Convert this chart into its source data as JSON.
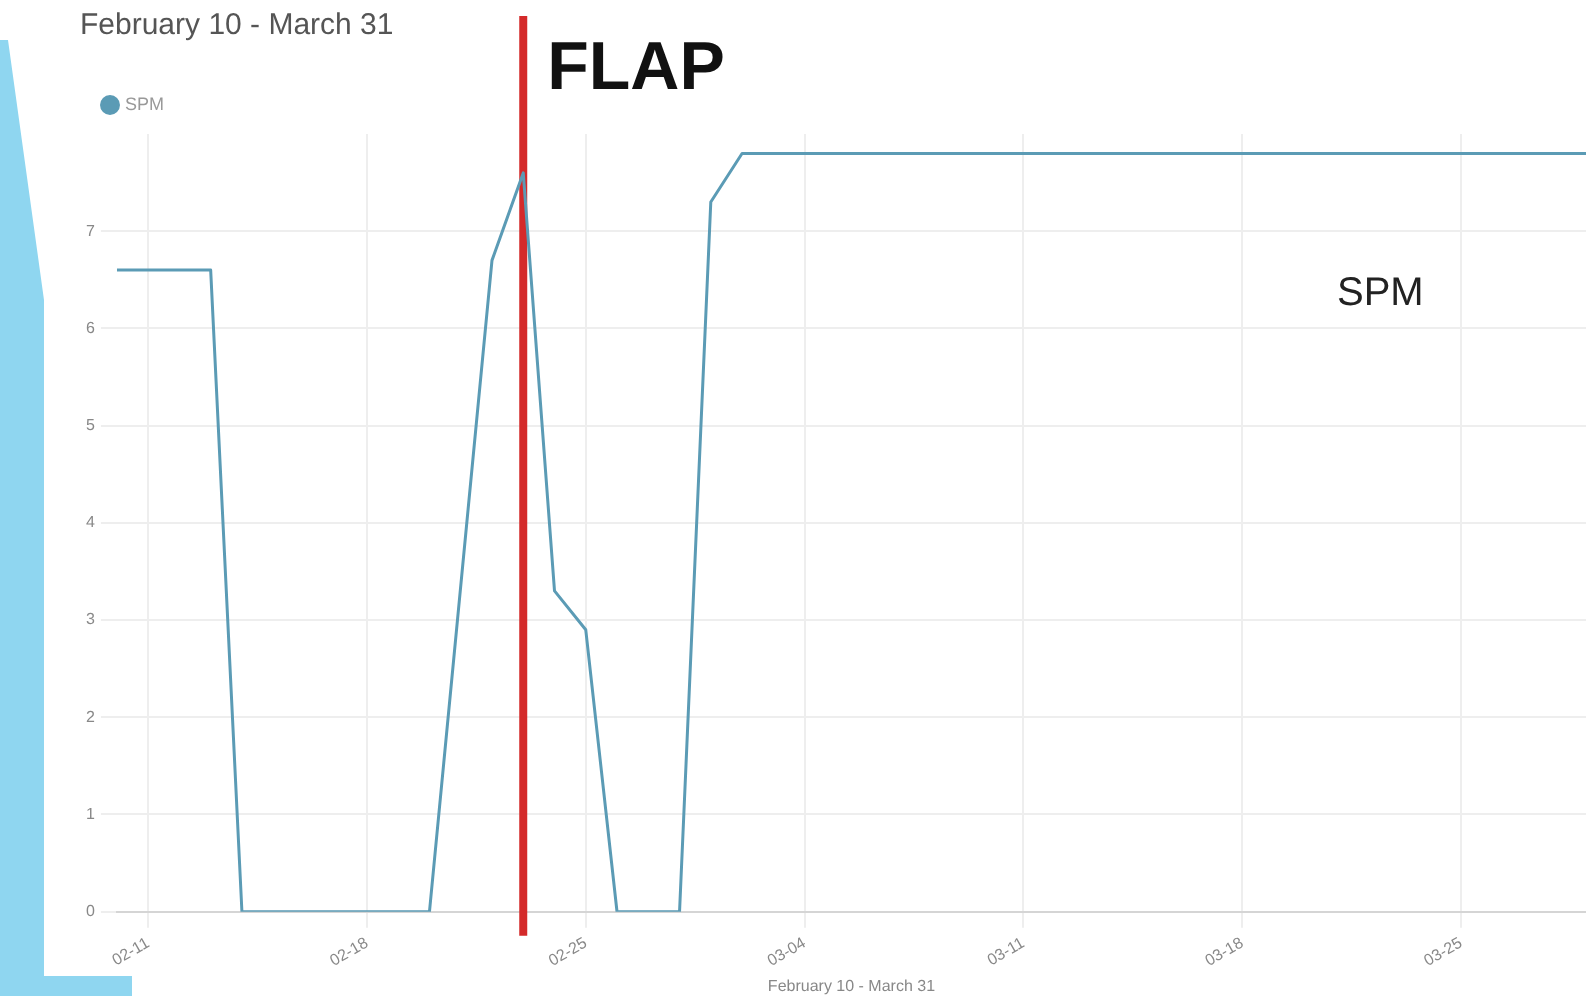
{
  "chart_data": {
    "type": "line",
    "title": "February 10 - March 31",
    "xlabel": "February 10 - March 31",
    "x": [
      "--02-10",
      "--02-13",
      "--02-14",
      "--02-20",
      "--02-22",
      "--02-23",
      "--02-24",
      "--02-25",
      "--02-26",
      "--02-28",
      "--03-01",
      "--03-02",
      "--03-15",
      "--03-29"
    ],
    "series": [
      {
        "name": "SPM",
        "color": "#5b9bb5",
        "values": [
          6.6,
          6.6,
          0,
          0,
          6.7,
          7.6,
          3.3,
          2.9,
          0,
          0,
          7.3,
          7.8,
          7.8,
          7.8
        ]
      }
    ],
    "xlim": [
      "--02-10",
      "--03-29"
    ],
    "xticks": [
      {
        "value": "--02-11",
        "label": "02-11"
      },
      {
        "value": "--02-18",
        "label": "02-18"
      },
      {
        "value": "--02-25",
        "label": "02-25"
      },
      {
        "value": "--03-04",
        "label": "03-04"
      },
      {
        "value": "--03-11",
        "label": "03-11"
      },
      {
        "value": "--03-18",
        "label": "03-18"
      },
      {
        "value": "--03-25",
        "label": "03-25"
      }
    ],
    "ylim": [
      0,
      8
    ],
    "yticks": [
      0,
      1,
      2,
      3,
      4,
      5,
      6,
      7
    ],
    "ref_lines": [
      {
        "axis": "x",
        "value": "--02-23",
        "label": "FLAP",
        "color": "#d42a2a"
      }
    ],
    "annotations": [
      "SPM"
    ],
    "grid": true,
    "legend": "top left",
    "marker": "none",
    "line_style": "solid"
  }
}
